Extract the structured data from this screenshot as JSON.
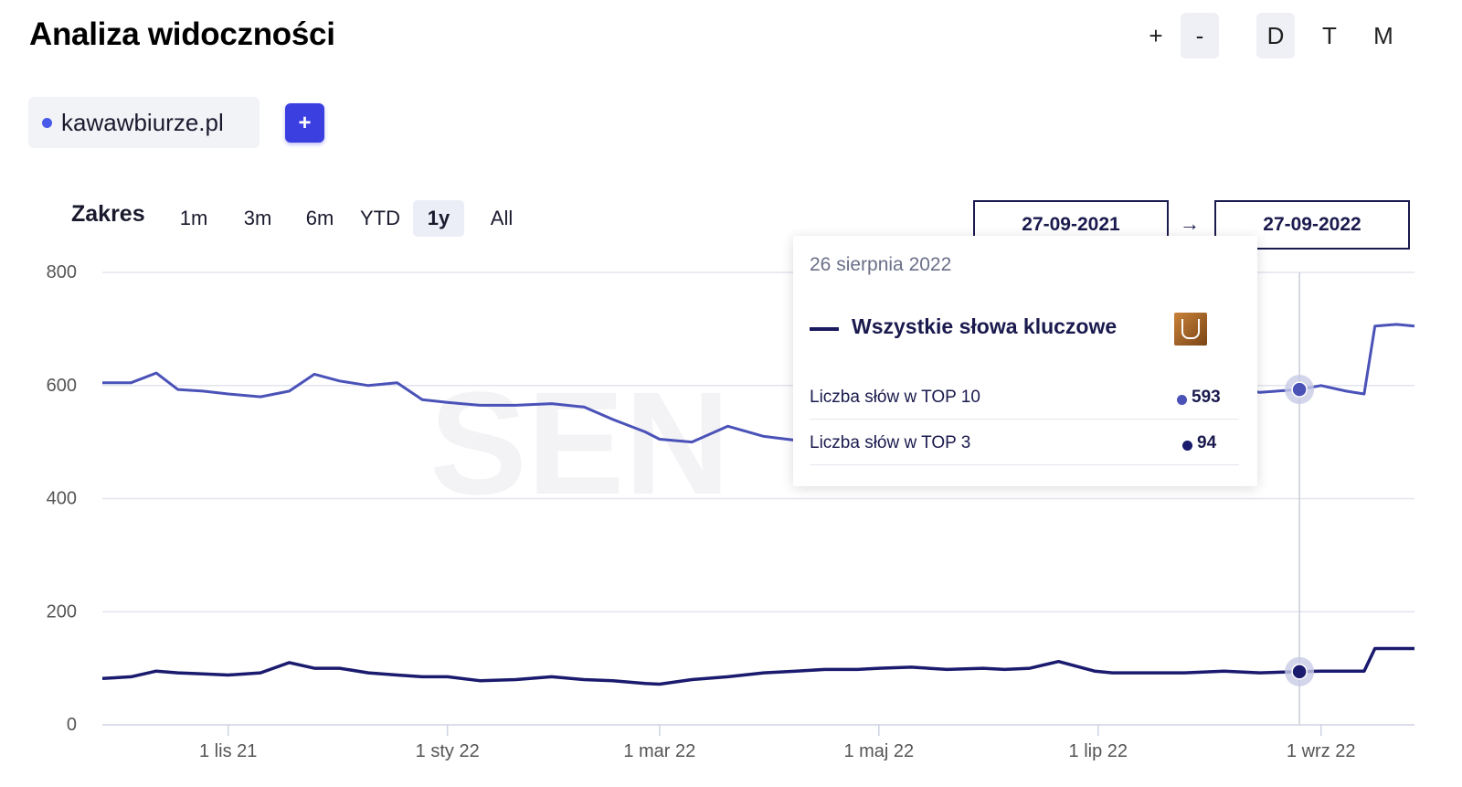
{
  "header": {
    "title": "Analiza widoczności",
    "zoom_in": "+",
    "zoom_out": "-",
    "periods": [
      "D",
      "T",
      "M"
    ],
    "active_period": "D"
  },
  "domain": {
    "name": "kawawbiurze.pl",
    "color": "#4a5ae8",
    "add_label": "+"
  },
  "range": {
    "label": "Zakres",
    "options": [
      "1m",
      "3m",
      "6m",
      "YTD",
      "1y",
      "All"
    ],
    "active": "1y",
    "start_date": "27-09-2021",
    "end_date": "27-09-2022",
    "arrow": "→"
  },
  "tooltip": {
    "date": "26 sierpnia 2022",
    "series_name": "Wszystkie słowa kluczowe",
    "rows": [
      {
        "label": "Liczba słów w TOP 10",
        "value": "593",
        "color": "#4a52b8"
      },
      {
        "label": "Liczba słów w TOP 3",
        "value": "94",
        "color": "#1a1a6e"
      }
    ]
  },
  "chart_data": {
    "type": "line",
    "ylim": [
      0,
      800
    ],
    "yticks": [
      "0",
      "200",
      "400",
      "600",
      "800"
    ],
    "xticks": [
      "1 lis 21",
      "1 sty 22",
      "1 mar 22",
      "1 maj 22",
      "1 lip 22",
      "1 wrz 22"
    ],
    "xtick_dates": [
      "2021-11-01",
      "2022-01-01",
      "2022-03-01",
      "2022-05-01",
      "2022-07-01",
      "2022-09-01"
    ],
    "x": [
      "2021-09-27",
      "2021-10-05",
      "2021-10-12",
      "2021-10-18",
      "2021-10-25",
      "2021-11-01",
      "2021-11-10",
      "2021-11-18",
      "2021-11-25",
      "2021-12-02",
      "2021-12-10",
      "2021-12-18",
      "2021-12-25",
      "2022-01-01",
      "2022-01-10",
      "2022-01-20",
      "2022-01-30",
      "2022-02-08",
      "2022-02-16",
      "2022-02-25",
      "2022-03-01",
      "2022-03-10",
      "2022-03-20",
      "2022-03-30",
      "2022-04-08",
      "2022-04-16",
      "2022-04-25",
      "2022-05-01",
      "2022-05-10",
      "2022-05-20",
      "2022-05-30",
      "2022-06-05",
      "2022-06-12",
      "2022-06-20",
      "2022-06-30",
      "2022-07-05",
      "2022-07-15",
      "2022-07-25",
      "2022-08-05",
      "2022-08-15",
      "2022-08-26",
      "2022-09-01",
      "2022-09-08",
      "2022-09-13",
      "2022-09-16",
      "2022-09-22",
      "2022-09-27"
    ],
    "series": [
      {
        "color": "#4a52b8",
        "values": [
          605,
          605,
          622,
          593,
          590,
          585,
          580,
          590,
          620,
          608,
          600,
          605,
          575,
          570,
          565,
          565,
          568,
          562,
          540,
          518,
          505,
          500,
          528,
          510,
          503,
          512,
          508,
          510,
          512,
          520,
          512,
          515,
          518,
          555,
          598,
          598,
          592,
          598,
          595,
          588,
          593,
          600,
          590,
          585,
          705,
          708,
          705
        ]
      },
      {
        "color": "#1a1a6e",
        "values": [
          82,
          85,
          95,
          92,
          90,
          88,
          92,
          110,
          100,
          100,
          92,
          88,
          85,
          85,
          78,
          80,
          85,
          80,
          78,
          73,
          72,
          80,
          85,
          92,
          95,
          98,
          98,
          100,
          102,
          98,
          100,
          98,
          100,
          112,
          95,
          92,
          92,
          92,
          95,
          92,
          94,
          95,
          95,
          95,
          135,
          135,
          135
        ]
      }
    ]
  }
}
